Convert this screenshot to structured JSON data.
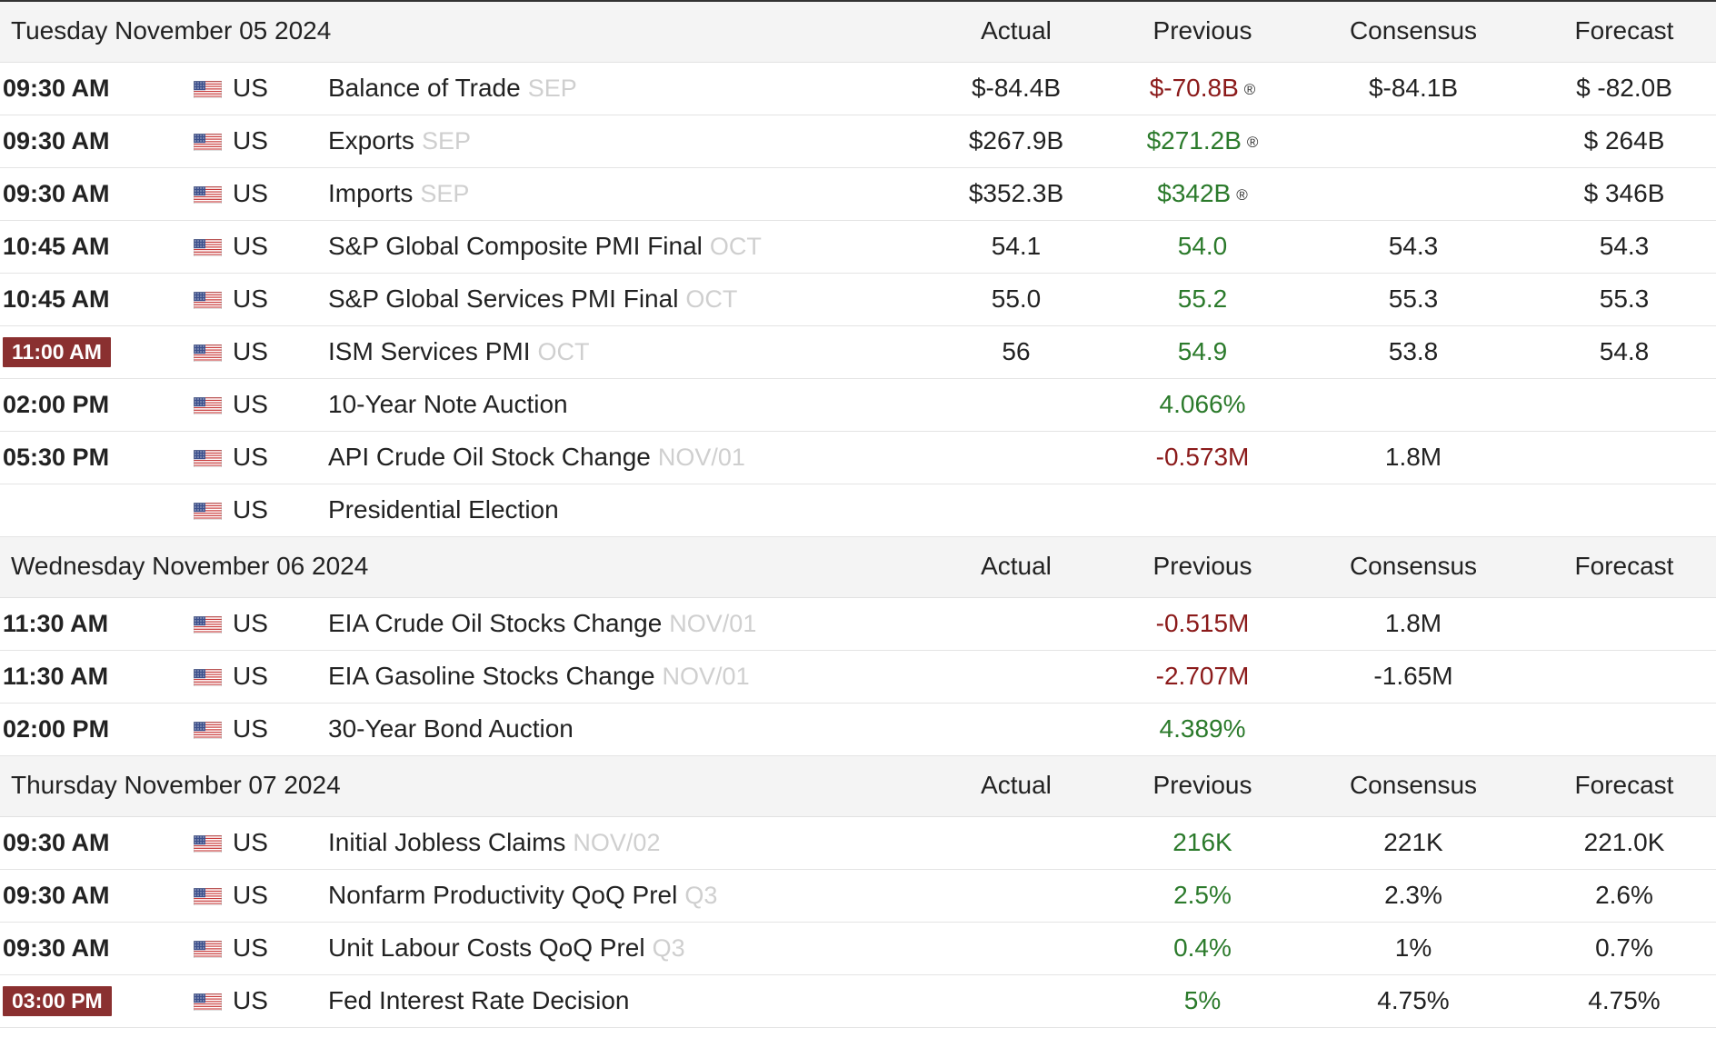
{
  "columns": {
    "actual": "Actual",
    "previous": "Previous",
    "consensus": "Consensus",
    "forecast": "Forecast"
  },
  "flag_icon": "us-flag-icon",
  "colors": {
    "positive": "#2b7a2b",
    "negative": "#8b1a1a",
    "highlight_time": "#8a3030",
    "reference": "#cfcfcf"
  },
  "days": [
    {
      "title": "Tuesday November 05 2024",
      "events": [
        {
          "time": "09:30 AM",
          "country": "US",
          "event": "Balance of Trade",
          "ref": "SEP",
          "actual": "$-84.4B",
          "previous": "$-70.8B",
          "previous_color": "neg",
          "revised": "®",
          "consensus": "$-84.1B",
          "forecast": "$ -82.0B"
        },
        {
          "time": "09:30 AM",
          "country": "US",
          "event": "Exports",
          "ref": "SEP",
          "actual": "$267.9B",
          "previous": "$271.2B",
          "previous_color": "pos",
          "revised": "®",
          "consensus": "",
          "forecast": "$ 264B"
        },
        {
          "time": "09:30 AM",
          "country": "US",
          "event": "Imports",
          "ref": "SEP",
          "actual": "$352.3B",
          "previous": "$342B",
          "previous_color": "pos",
          "revised": "®",
          "consensus": "",
          "forecast": "$ 346B"
        },
        {
          "time": "10:45 AM",
          "country": "US",
          "event": "S&P Global Composite PMI Final",
          "ref": "OCT",
          "actual": "54.1",
          "previous": "54.0",
          "previous_color": "pos",
          "consensus": "54.3",
          "forecast": "54.3"
        },
        {
          "time": "10:45 AM",
          "country": "US",
          "event": "S&P Global Services PMI Final",
          "ref": "OCT",
          "actual": "55.0",
          "previous": "55.2",
          "previous_color": "pos",
          "consensus": "55.3",
          "forecast": "55.3"
        },
        {
          "time": "11:00 AM",
          "highlight": true,
          "country": "US",
          "event": "ISM Services PMI",
          "ref": "OCT",
          "actual": "56",
          "previous": "54.9",
          "previous_color": "pos",
          "consensus": "53.8",
          "forecast": "54.8"
        },
        {
          "time": "02:00 PM",
          "country": "US",
          "event": "10-Year Note Auction",
          "ref": "",
          "actual": "",
          "previous": "4.066%",
          "previous_color": "pos",
          "consensus": "",
          "forecast": ""
        },
        {
          "time": "05:30 PM",
          "country": "US",
          "event": "API Crude Oil Stock Change",
          "ref": "NOV/01",
          "actual": "",
          "previous": "-0.573M",
          "previous_color": "neg",
          "consensus": "1.8M",
          "forecast": ""
        },
        {
          "time": "",
          "country": "US",
          "event": "Presidential Election",
          "ref": "",
          "actual": "",
          "previous": "",
          "consensus": "",
          "forecast": ""
        }
      ]
    },
    {
      "title": "Wednesday November 06 2024",
      "events": [
        {
          "time": "11:30 AM",
          "country": "US",
          "event": "EIA Crude Oil Stocks Change",
          "ref": "NOV/01",
          "actual": "",
          "previous": "-0.515M",
          "previous_color": "neg",
          "consensus": "1.8M",
          "forecast": ""
        },
        {
          "time": "11:30 AM",
          "country": "US",
          "event": "EIA Gasoline Stocks Change",
          "ref": "NOV/01",
          "actual": "",
          "previous": "-2.707M",
          "previous_color": "neg",
          "consensus": "-1.65M",
          "forecast": ""
        },
        {
          "time": "02:00 PM",
          "country": "US",
          "event": "30-Year Bond Auction",
          "ref": "",
          "actual": "",
          "previous": "4.389%",
          "previous_color": "pos",
          "consensus": "",
          "forecast": ""
        }
      ]
    },
    {
      "title": "Thursday November 07 2024",
      "events": [
        {
          "time": "09:30 AM",
          "country": "US",
          "event": "Initial Jobless Claims",
          "ref": "NOV/02",
          "actual": "",
          "previous": "216K",
          "previous_color": "pos",
          "consensus": "221K",
          "forecast": "221.0K"
        },
        {
          "time": "09:30 AM",
          "country": "US",
          "event": "Nonfarm Productivity QoQ Prel",
          "ref": "Q3",
          "actual": "",
          "previous": "2.5%",
          "previous_color": "pos",
          "consensus": "2.3%",
          "forecast": "2.6%"
        },
        {
          "time": "09:30 AM",
          "country": "US",
          "event": "Unit Labour Costs QoQ Prel",
          "ref": "Q3",
          "actual": "",
          "previous": "0.4%",
          "previous_color": "pos",
          "consensus": "1%",
          "forecast": "0.7%"
        },
        {
          "time": "03:00 PM",
          "highlight": true,
          "country": "US",
          "event": "Fed Interest Rate Decision",
          "ref": "",
          "actual": "",
          "previous": "5%",
          "previous_color": "pos",
          "consensus": "4.75%",
          "forecast": "4.75%"
        }
      ]
    }
  ]
}
